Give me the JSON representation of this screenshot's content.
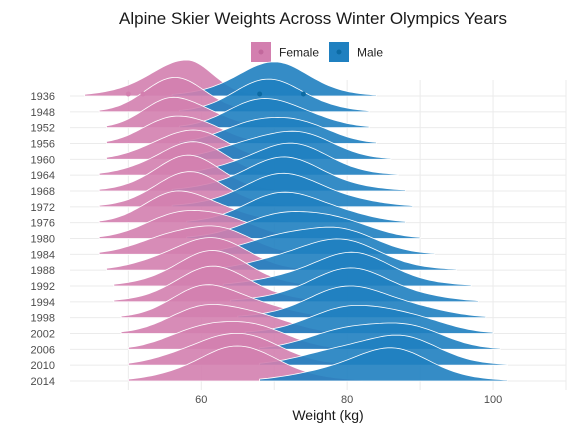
{
  "chart_data": {
    "type": "ridgeline",
    "title": "Alpine Skier Weights Across Winter Olympics Years",
    "xlabel": "Weight (kg)",
    "ylabel": "",
    "xlim": [
      42,
      110
    ],
    "x_ticks": [
      60,
      80,
      100
    ],
    "grid": true,
    "legend_position": "top",
    "categories": [
      "1936",
      "1948",
      "1952",
      "1956",
      "1960",
      "1964",
      "1968",
      "1972",
      "1976",
      "1980",
      "1984",
      "1988",
      "1992",
      "1994",
      "1998",
      "2002",
      "2006",
      "2010",
      "2014"
    ],
    "series": [
      {
        "name": "Female",
        "color": "#d37faf",
        "modes_kg": [
          58,
          57,
          57,
          57,
          58,
          58,
          58,
          59,
          58,
          60,
          60,
          60,
          61,
          62,
          62,
          63,
          63,
          63,
          64
        ],
        "ranges_kg": [
          [
            44,
            68
          ],
          [
            46,
            68
          ],
          [
            47,
            69
          ],
          [
            47,
            69
          ],
          [
            47,
            70
          ],
          [
            46,
            71
          ],
          [
            46,
            71
          ],
          [
            46,
            72
          ],
          [
            46,
            72
          ],
          [
            46,
            74
          ],
          [
            46,
            74
          ],
          [
            47,
            75
          ],
          [
            48,
            76
          ],
          [
            48,
            77
          ],
          [
            49,
            78
          ],
          [
            49,
            79
          ],
          [
            50,
            80
          ],
          [
            50,
            81
          ],
          [
            50,
            82
          ]
        ],
        "outlier_points_kg": [
          50,
          52
        ]
      },
      {
        "name": "Male",
        "color": "#1f80c0",
        "modes_kg": [
          70,
          70,
          70,
          71,
          71,
          71,
          71,
          72,
          73,
          75,
          76,
          77,
          80,
          81,
          82,
          84,
          85,
          85,
          85
        ],
        "ranges_kg": [
          [
            56,
            84
          ],
          [
            57,
            83
          ],
          [
            57,
            83
          ],
          [
            57,
            84
          ],
          [
            57,
            86
          ],
          [
            57,
            87
          ],
          [
            56,
            88
          ],
          [
            56,
            89
          ],
          [
            58,
            88
          ],
          [
            58,
            90
          ],
          [
            60,
            92
          ],
          [
            62,
            95
          ],
          [
            63,
            97
          ],
          [
            64,
            98
          ],
          [
            65,
            99
          ],
          [
            66,
            100
          ],
          [
            68,
            101
          ],
          [
            68,
            102
          ],
          [
            68,
            102
          ]
        ],
        "outlier_points_kg": [
          68,
          74
        ]
      }
    ]
  }
}
